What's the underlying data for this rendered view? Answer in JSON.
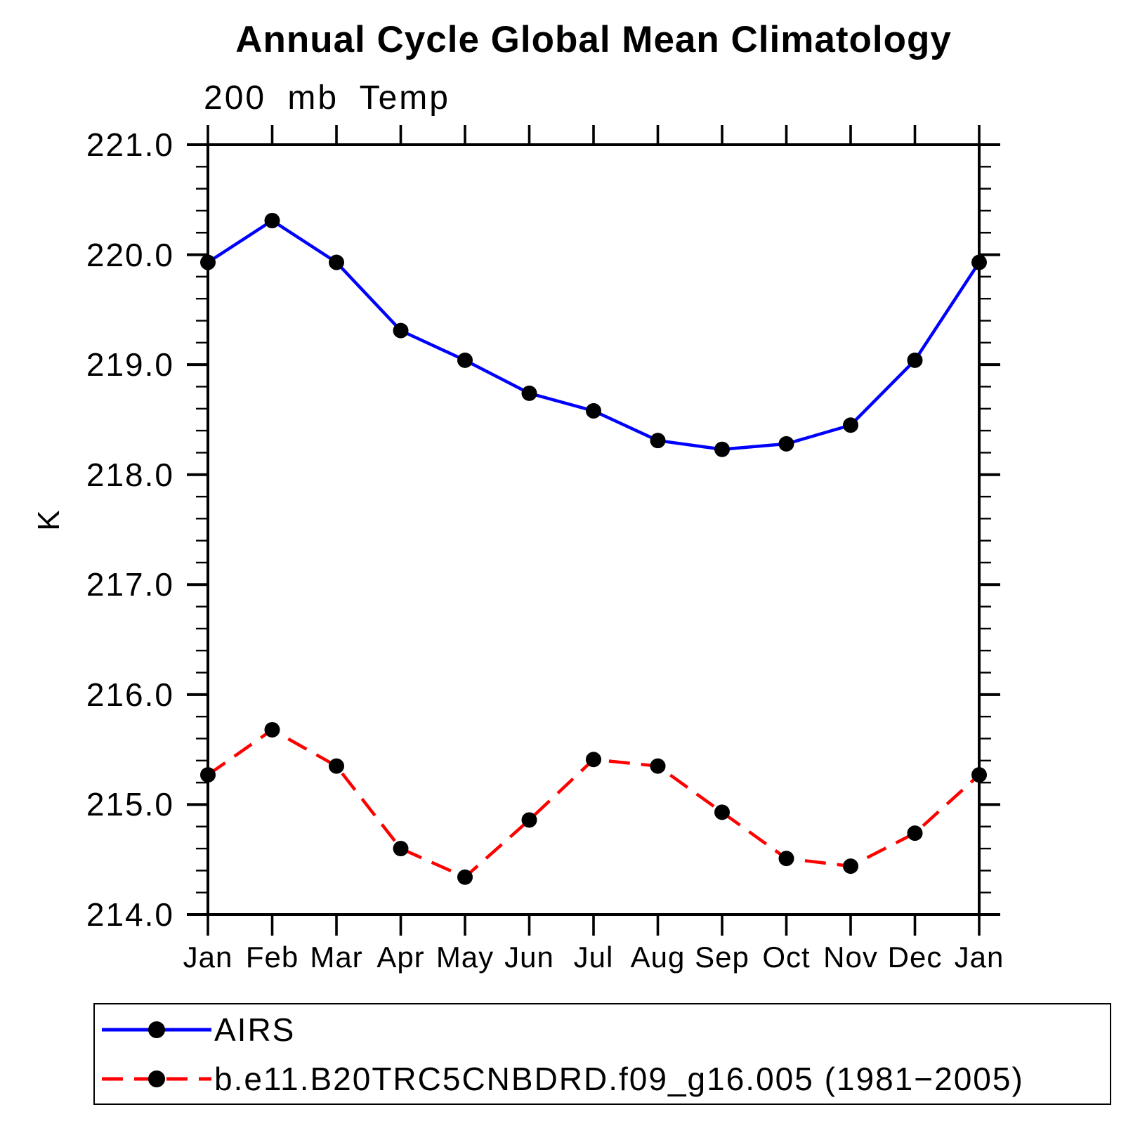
{
  "title": "Annual Cycle Global Mean Climatology",
  "subtitle": "200 mb Temp",
  "ylabel": "K",
  "chart_data": {
    "type": "line",
    "categories": [
      "Jan",
      "Feb",
      "Mar",
      "Apr",
      "May",
      "Jun",
      "Jul",
      "Aug",
      "Sep",
      "Oct",
      "Nov",
      "Dec",
      "Jan"
    ],
    "series": [
      {
        "name": "AIRS",
        "color": "#0000ff",
        "line_style": "solid",
        "marker": "filled-circle",
        "marker_color": "#000000",
        "values": [
          219.93,
          220.31,
          219.93,
          219.31,
          219.04,
          218.74,
          218.58,
          218.31,
          218.23,
          218.28,
          218.45,
          219.04,
          219.93
        ]
      },
      {
        "name": "b.e11.B20TRC5CNBDRD.f09_g16.005 (1981−2005)",
        "color": "#ff0000",
        "line_style": "dashed",
        "marker": "filled-circle",
        "marker_color": "#000000",
        "values": [
          215.27,
          215.68,
          215.35,
          214.6,
          214.34,
          214.86,
          215.41,
          215.35,
          214.93,
          214.51,
          214.44,
          214.74,
          215.27
        ]
      }
    ],
    "xlabel": "",
    "ylim": [
      214.0,
      221.0
    ],
    "ytick_interval": 1.0,
    "yminor_interval": 0.2,
    "ytick_labels": [
      "221.0",
      "220.0",
      "219.0",
      "218.0",
      "217.0",
      "216.0",
      "215.0",
      "214.0"
    ],
    "grid": false,
    "legend_position": "bottom-left",
    "frame_color": "#000000"
  }
}
